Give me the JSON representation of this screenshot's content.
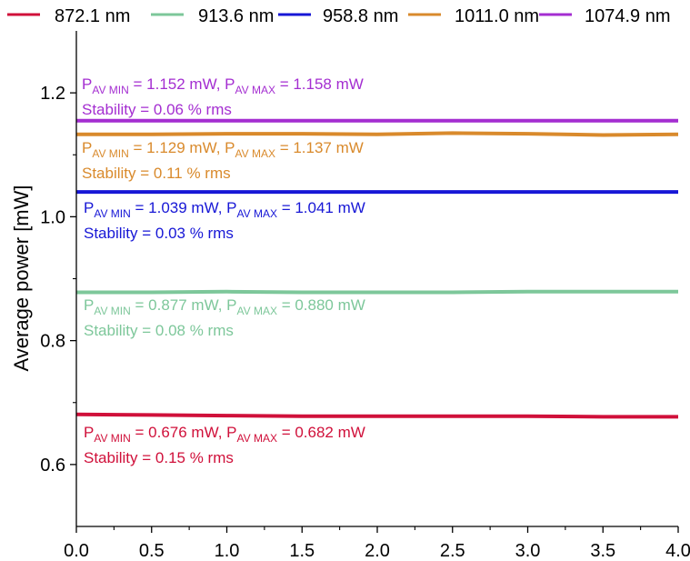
{
  "chart_data": {
    "type": "line",
    "title": "",
    "xlabel": "",
    "ylabel": "Average power [mW]",
    "xlim": [
      0.0,
      4.0
    ],
    "ylim": [
      0.5,
      1.3
    ],
    "xticks": [
      "0.0",
      "0.5",
      "1.0",
      "1.5",
      "2.0",
      "2.5",
      "3.0",
      "3.5",
      "4.0"
    ],
    "yticks": [
      "0.6",
      "0.8",
      "1.0",
      "1.2"
    ],
    "legend_position": "top",
    "grid": false,
    "series": [
      {
        "name": "872.1 nm",
        "color": "#d0103a",
        "x": [
          0.0,
          0.5,
          1.0,
          1.5,
          2.0,
          2.5,
          3.0,
          3.5,
          4.0
        ],
        "values": [
          0.681,
          0.68,
          0.679,
          0.678,
          0.678,
          0.678,
          0.678,
          0.677,
          0.677
        ],
        "annotation": {
          "pmin_label": "P",
          "pmin_sub": "AV MIN",
          "pmin_value": " = 0.676 mW, ",
          "pmax_label": "P",
          "pmax_sub": "AV MAX",
          "pmax_value": " = 0.682 mW",
          "stability": "Stability = 0.15 % rms"
        }
      },
      {
        "name": "913.6 nm",
        "color": "#7dc79a",
        "x": [
          0.0,
          0.5,
          1.0,
          1.5,
          2.0,
          2.5,
          3.0,
          3.5,
          4.0
        ],
        "values": [
          0.878,
          0.878,
          0.879,
          0.878,
          0.878,
          0.878,
          0.879,
          0.879,
          0.879
        ],
        "annotation": {
          "pmin_label": "P",
          "pmin_sub": "AV MIN",
          "pmin_value": " = 0.877 mW, ",
          "pmax_label": "P",
          "pmax_sub": "AV MAX",
          "pmax_value": " = 0.880 mW",
          "stability": "Stability = 0.08 % rms"
        }
      },
      {
        "name": "958.8 nm",
        "color": "#1717d6",
        "x": [
          0.0,
          0.5,
          1.0,
          1.5,
          2.0,
          2.5,
          3.0,
          3.5,
          4.0
        ],
        "values": [
          1.04,
          1.04,
          1.04,
          1.04,
          1.04,
          1.04,
          1.04,
          1.04,
          1.04
        ],
        "annotation": {
          "pmin_label": "P",
          "pmin_sub": "AV MIN",
          "pmin_value": " = 1.039 mW, ",
          "pmax_label": "P",
          "pmax_sub": "AV MAX",
          "pmax_value": " = 1.041 mW",
          "stability": "Stability = 0.03 % rms"
        }
      },
      {
        "name": "1011.0 nm",
        "color": "#d98a2c",
        "x": [
          0.0,
          0.5,
          1.0,
          1.5,
          2.0,
          2.5,
          3.0,
          3.5,
          4.0
        ],
        "values": [
          1.133,
          1.133,
          1.134,
          1.134,
          1.133,
          1.135,
          1.134,
          1.132,
          1.133
        ],
        "annotation": {
          "pmin_label": "P",
          "pmin_sub": "AV MIN",
          "pmin_value": " = 1.129 mW, ",
          "pmax_label": "P",
          "pmax_sub": "AV MAX",
          "pmax_value": " = 1.137 mW",
          "stability": "Stability = 0.11 % rms"
        }
      },
      {
        "name": "1074.9 nm",
        "color": "#a42ed1",
        "x": [
          0.0,
          0.5,
          1.0,
          1.5,
          2.0,
          2.5,
          3.0,
          3.5,
          4.0
        ],
        "values": [
          1.155,
          1.155,
          1.155,
          1.155,
          1.155,
          1.155,
          1.155,
          1.155,
          1.155
        ],
        "annotation": {
          "pmin_label": "P",
          "pmin_sub": "AV MIN",
          "pmin_value": " = 1.152 mW, ",
          "pmax_label": "P",
          "pmax_sub": "AV MAX",
          "pmax_value": " = 1.158 mW",
          "stability": "Stability = 0.06 % rms"
        }
      }
    ]
  }
}
